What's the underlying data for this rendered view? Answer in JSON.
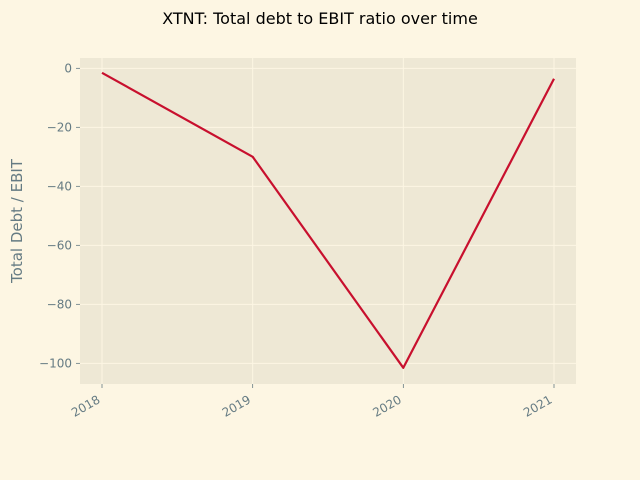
{
  "colors": {
    "figure_background": "#fdf6e3",
    "plot_background": "#eee8d5",
    "grid": "#fdf6e3",
    "line": "#c8102e",
    "text": "#657b83"
  },
  "chart_data": {
    "type": "line",
    "title": "XTNT: Total debt to EBIT ratio over time",
    "xlabel": "",
    "ylabel": "Total Debt / EBIT",
    "x": [
      "2018",
      "2019",
      "2020",
      "2021"
    ],
    "series": [
      {
        "values": [
          -1.5,
          -30,
          -101.5,
          -3.5
        ]
      }
    ],
    "ylim": [
      -107,
      3.5
    ],
    "yticks": [
      0,
      -20,
      -40,
      -60,
      -80,
      -100
    ],
    "grid": true,
    "legend": "none"
  }
}
